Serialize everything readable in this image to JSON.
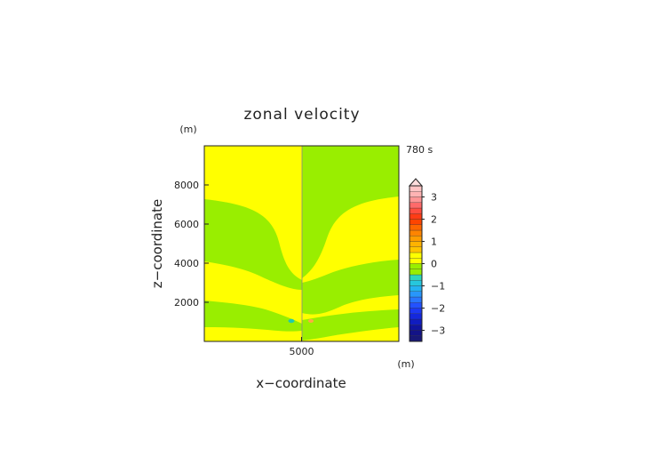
{
  "chart_data": {
    "type": "heatmap",
    "title": "zonal velocity",
    "xlabel": "x−coordinate",
    "ylabel": "z−coordinate",
    "x_unit": "(m)",
    "y_unit": "(m)",
    "time_label": "780 s",
    "xlim": [
      0,
      10000
    ],
    "ylim": [
      0,
      10000
    ],
    "x_ticks": [
      {
        "value": 5000,
        "label": "5000"
      }
    ],
    "y_ticks": [
      {
        "value": 2000,
        "label": "2000"
      },
      {
        "value": 4000,
        "label": "4000"
      },
      {
        "value": 6000,
        "label": "6000"
      },
      {
        "value": 8000,
        "label": "8000"
      }
    ],
    "colorbar": {
      "range": [
        -3.5,
        3.5
      ],
      "step": 0.25,
      "extend_max_arrow": true,
      "labels": [
        {
          "value": 3,
          "label": "3"
        },
        {
          "value": 2,
          "label": "2"
        },
        {
          "value": 1,
          "label": "1"
        },
        {
          "value": 0,
          "label": "0"
        },
        {
          "value": -1,
          "label": "−1"
        },
        {
          "value": -2,
          "label": "−2"
        },
        {
          "value": -3,
          "label": "−3"
        }
      ]
    },
    "colors": {
      "positive_low": "#ffff00",
      "negative_low": "#99ee00",
      "frame": "#222222"
    }
  }
}
